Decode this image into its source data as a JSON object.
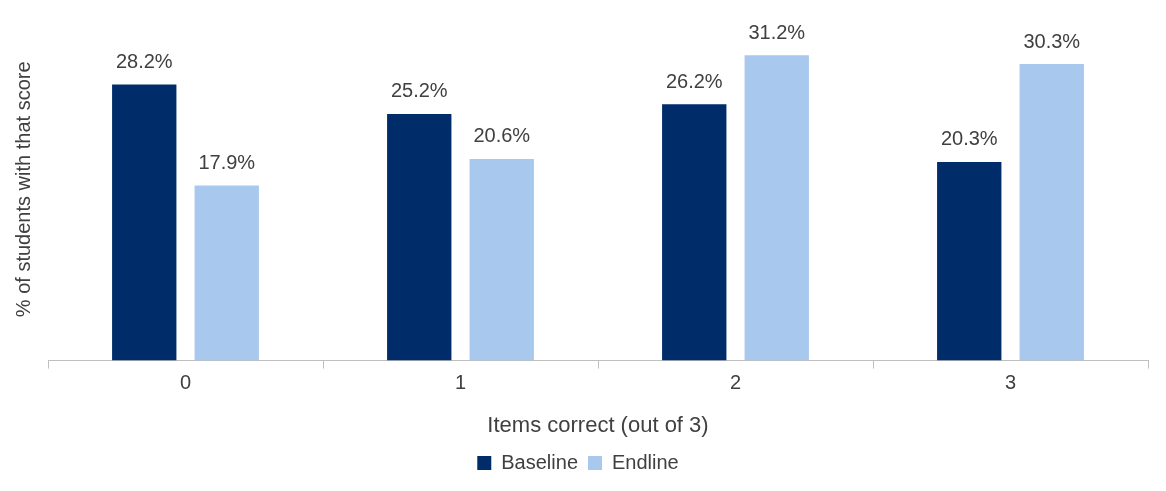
{
  "chart_data": {
    "type": "bar",
    "xlabel": "Items correct (out of 3)",
    "ylabel": "% of students with that score",
    "categories": [
      "0",
      "1",
      "2",
      "3"
    ],
    "series": [
      {
        "name": "Baseline",
        "color": "#002d6a",
        "values": [
          28.2,
          25.2,
          26.2,
          20.3
        ],
        "value_labels": [
          "28.2%",
          "25.2%",
          "26.2%",
          "20.3%"
        ]
      },
      {
        "name": "Endline",
        "color": "#a9c8ee",
        "values": [
          17.9,
          20.6,
          31.2,
          30.3
        ],
        "value_labels": [
          "17.9%",
          "20.6%",
          "31.2%",
          "30.3%"
        ]
      }
    ],
    "grid": false,
    "legend": "bottom"
  }
}
